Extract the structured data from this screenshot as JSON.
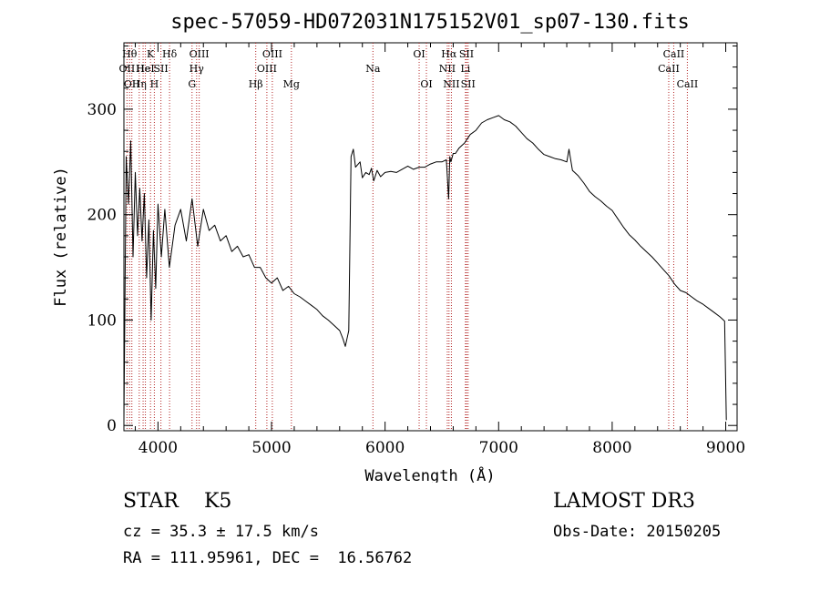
{
  "chart_data": {
    "type": "line",
    "title": "spec-57059-HD072031N175152V01_sp07-130.fits",
    "xlabel": "Wavelength (Å)",
    "ylabel": "Flux (relative)",
    "xlim": [
      3700,
      9100
    ],
    "ylim": [
      -5,
      363
    ],
    "xticks": [
      4000,
      5000,
      6000,
      7000,
      8000,
      9000
    ],
    "yticks": [
      0,
      100,
      200,
      300
    ],
    "grid": false,
    "series": [
      {
        "name": "spectrum",
        "x": [
          3700,
          3720,
          3740,
          3760,
          3780,
          3800,
          3820,
          3840,
          3860,
          3880,
          3900,
          3920,
          3940,
          3960,
          3980,
          4000,
          4030,
          4060,
          4100,
          4150,
          4200,
          4250,
          4300,
          4350,
          4400,
          4450,
          4500,
          4550,
          4600,
          4650,
          4700,
          4750,
          4800,
          4850,
          4900,
          4950,
          5000,
          5050,
          5100,
          5150,
          5200,
          5250,
          5300,
          5350,
          5400,
          5450,
          5500,
          5550,
          5600,
          5630,
          5650,
          5680,
          5700,
          5720,
          5740,
          5780,
          5800,
          5830,
          5860,
          5880,
          5900,
          5930,
          5960,
          6000,
          6050,
          6100,
          6150,
          6200,
          6250,
          6300,
          6350,
          6400,
          6450,
          6500,
          6540,
          6560,
          6570,
          6580,
          6600,
          6620,
          6650,
          6700,
          6750,
          6800,
          6850,
          6900,
          6950,
          7000,
          7050,
          7100,
          7150,
          7200,
          7250,
          7300,
          7350,
          7400,
          7450,
          7500,
          7550,
          7600,
          7620,
          7650,
          7700,
          7750,
          7800,
          7850,
          7900,
          7950,
          8000,
          8050,
          8100,
          8150,
          8200,
          8250,
          8300,
          8350,
          8400,
          8450,
          8500,
          8550,
          8600,
          8650,
          8700,
          8750,
          8800,
          8850,
          8900,
          8950,
          8990,
          9000,
          9005
        ],
        "y": [
          5,
          255,
          210,
          270,
          160,
          240,
          180,
          225,
          175,
          220,
          140,
          195,
          100,
          185,
          130,
          210,
          160,
          205,
          150,
          190,
          205,
          175,
          215,
          170,
          205,
          185,
          190,
          175,
          180,
          165,
          170,
          160,
          162,
          150,
          150,
          140,
          135,
          140,
          128,
          132,
          125,
          122,
          118,
          114,
          110,
          104,
          100,
          95,
          90,
          82,
          75,
          90,
          255,
          262,
          245,
          250,
          235,
          240,
          238,
          244,
          232,
          242,
          236,
          240,
          241,
          240,
          243,
          246,
          243,
          245,
          245,
          248,
          250,
          250,
          252,
          215,
          255,
          250,
          258,
          258,
          263,
          268,
          276,
          280,
          287,
          290,
          292,
          294,
          290,
          288,
          284,
          278,
          272,
          268,
          262,
          257,
          255,
          253,
          252,
          250,
          262,
          242,
          237,
          230,
          222,
          217,
          213,
          208,
          204,
          196,
          188,
          181,
          176,
          170,
          165,
          160,
          154,
          148,
          142,
          134,
          128,
          126,
          122,
          118,
          115,
          111,
          107,
          103,
          99,
          40,
          5
        ]
      }
    ],
    "line_markers": [
      {
        "wavelength": 3727,
        "label": "OII",
        "row": 2
      },
      {
        "wavelength": 3750,
        "label": "Hθ",
        "row": 1
      },
      {
        "wavelength": 3770,
        "label": "OII",
        "row": 3
      },
      {
        "wavelength": 3835,
        "label": "Hη",
        "row": 3
      },
      {
        "wavelength": 3869,
        "label": "He",
        "row": 2
      },
      {
        "wavelength": 3889,
        "label": "HeI",
        "row": 2
      },
      {
        "wavelength": 3934,
        "label": "K",
        "row": 1
      },
      {
        "wavelength": 3968,
        "label": "H",
        "row": 3
      },
      {
        "wavelength": 4026,
        "label": "SII",
        "row": 2
      },
      {
        "wavelength": 4102,
        "label": "Hδ",
        "row": 1
      },
      {
        "wavelength": 4300,
        "label": "G",
        "row": 3
      },
      {
        "wavelength": 4340,
        "label": "Hγ",
        "row": 2
      },
      {
        "wavelength": 4363,
        "label": "OIII",
        "row": 1
      },
      {
        "wavelength": 4861,
        "label": "Hβ",
        "row": 3
      },
      {
        "wavelength": 4959,
        "label": "OIII",
        "row": 2
      },
      {
        "wavelength": 5007,
        "label": "OIII",
        "row": 1
      },
      {
        "wavelength": 5175,
        "label": "Mg",
        "row": 3
      },
      {
        "wavelength": 5893,
        "label": "Na",
        "row": 2
      },
      {
        "wavelength": 6300,
        "label": "OI",
        "row": 1
      },
      {
        "wavelength": 6364,
        "label": "OI",
        "row": 3
      },
      {
        "wavelength": 6548,
        "label": "NII",
        "row": 2
      },
      {
        "wavelength": 6563,
        "label": "Hα",
        "row": 1
      },
      {
        "wavelength": 6584,
        "label": "NII",
        "row": 3
      },
      {
        "wavelength": 6708,
        "label": "Li",
        "row": 2
      },
      {
        "wavelength": 6717,
        "label": "SII",
        "row": 1
      },
      {
        "wavelength": 6731,
        "label": "SII",
        "row": 3
      },
      {
        "wavelength": 8498,
        "label": "CaII",
        "row": 2
      },
      {
        "wavelength": 8542,
        "label": "CaII",
        "row": 1
      },
      {
        "wavelength": 8662,
        "label": "CaII",
        "row": 3
      }
    ]
  },
  "info": {
    "star_line": "STAR    K5",
    "cz_line": "cz = 35.3 ± 17.5 km/s",
    "radec_line": "RA = 111.95961, DEC =  16.56762",
    "survey_line": "LAMOST DR3",
    "obs_line": "Obs-Date: 20150205"
  },
  "colors": {
    "line_marker": "#b22222",
    "spectrum": "#000000",
    "axes": "#000000"
  }
}
